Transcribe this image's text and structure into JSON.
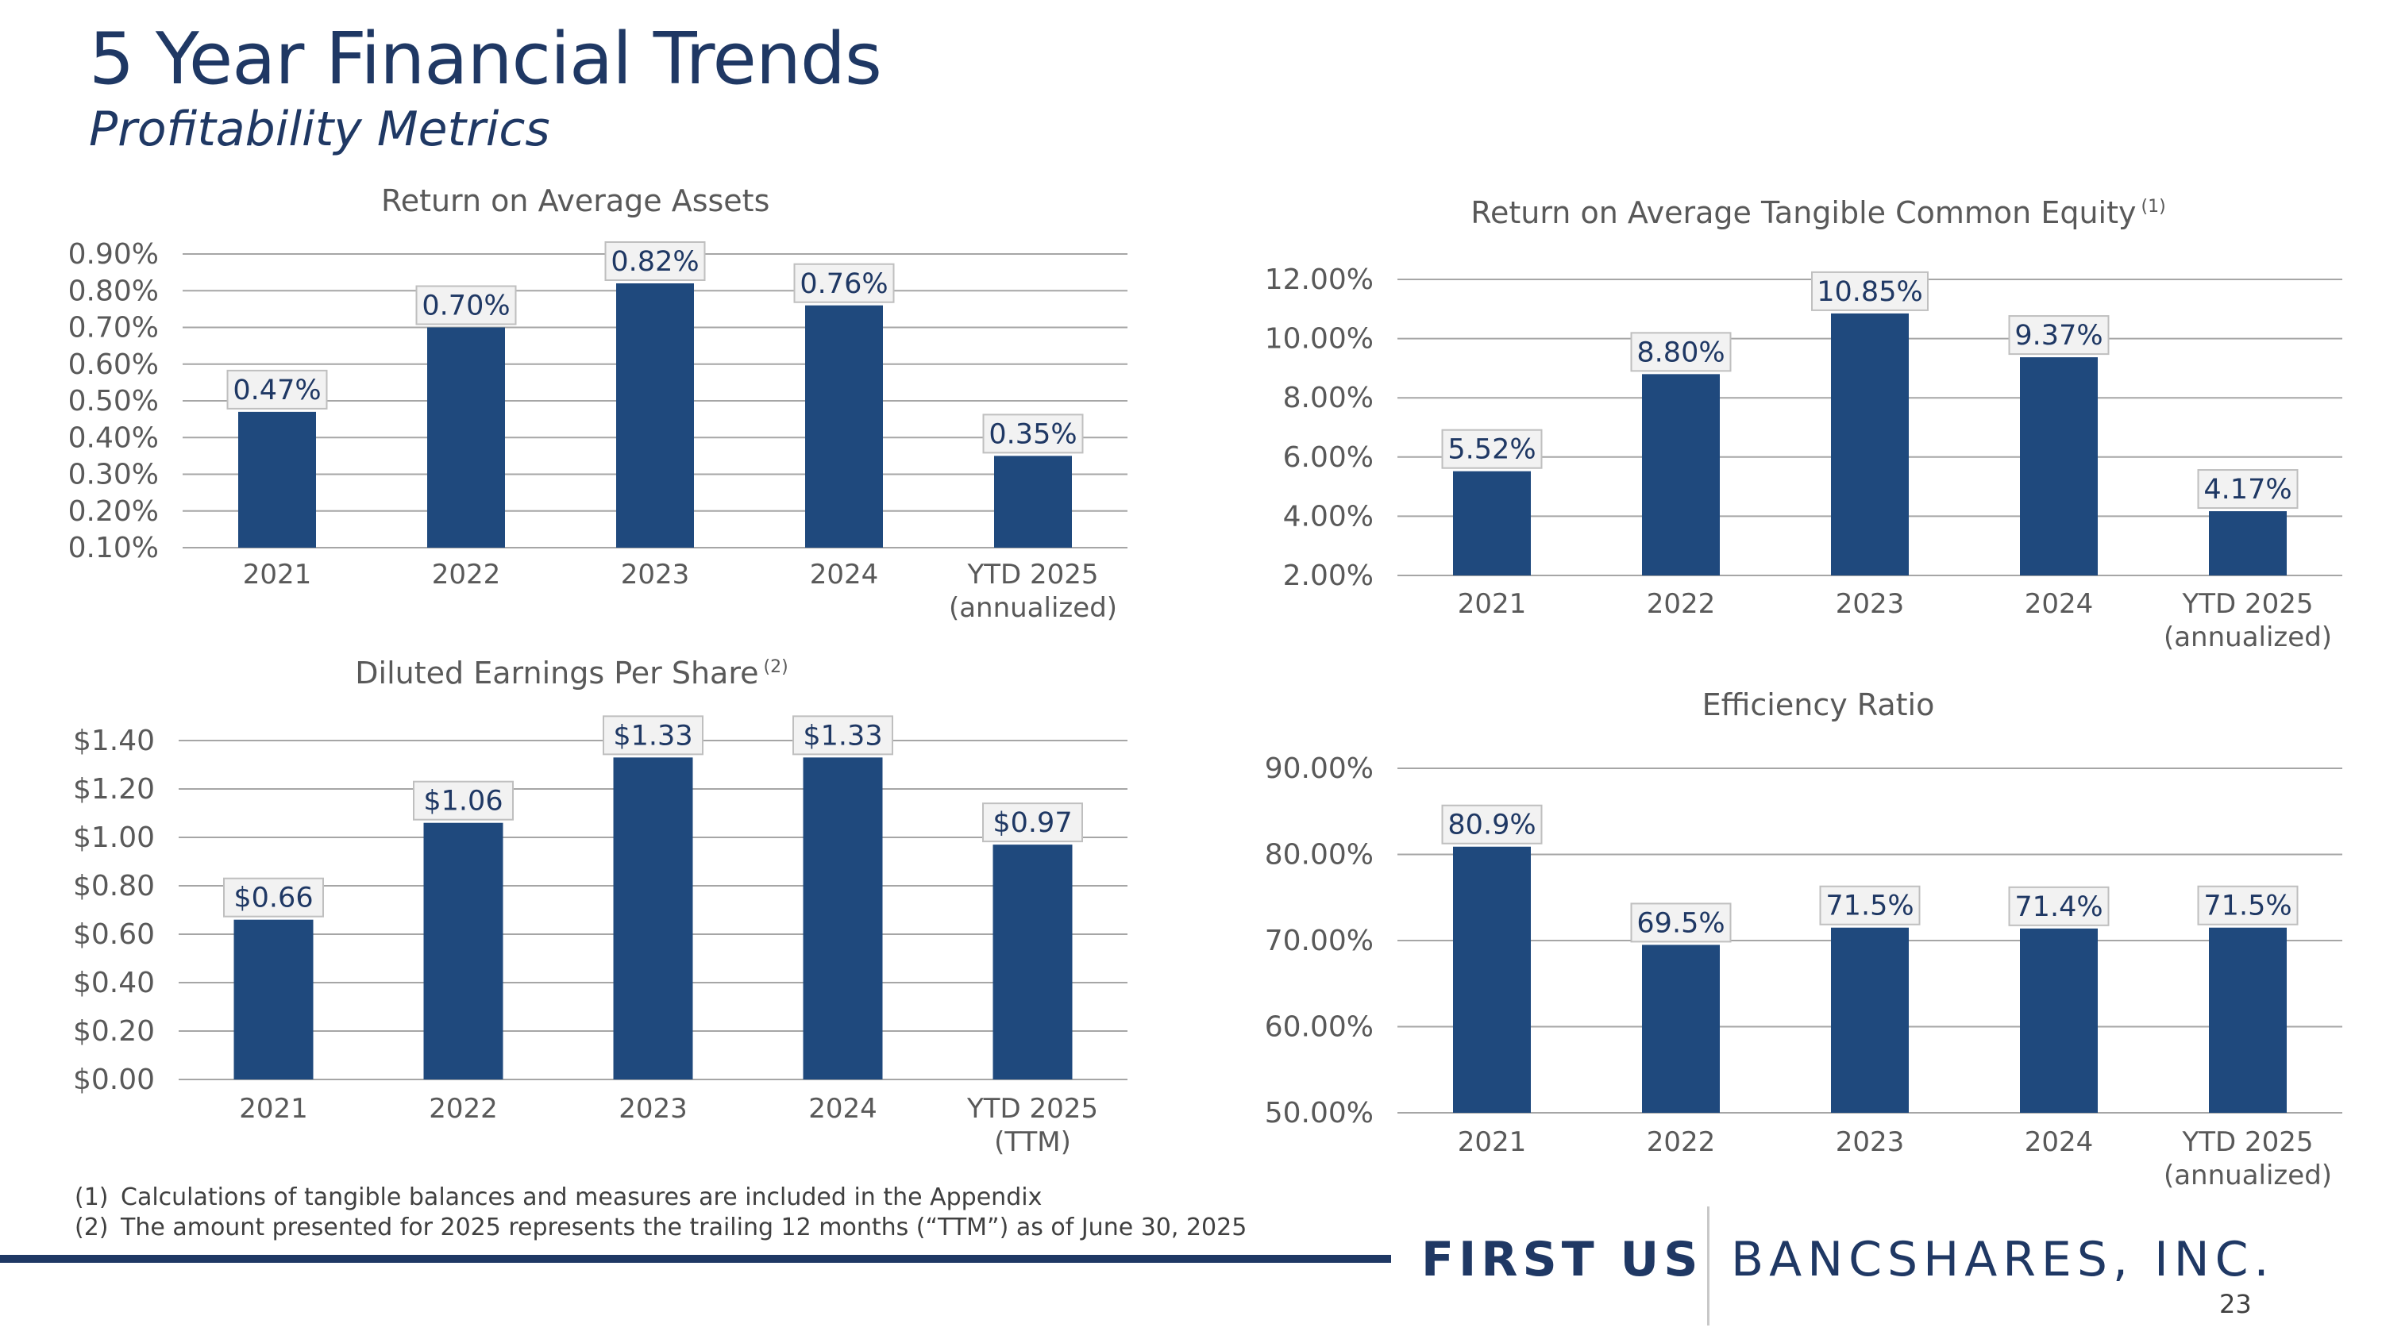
{
  "slide": {
    "title": "5 Year Financial Trends",
    "subtitle": "Profitability Metrics",
    "footnotes": [
      {
        "num": "(1)",
        "text": "Calculations of tangible balances and measures are included in the Appendix"
      },
      {
        "num": "(2)",
        "text": "The amount presented for 2025 represents the trailing 12 months (“TTM”) as of June 30, 2025"
      }
    ],
    "brand_left": "FIRST US",
    "brand_right": "BANCSHARES, INC.",
    "page_number": "23",
    "colors": {
      "bar": "#1f497d",
      "title": "#1f3864",
      "grid": "#a6a6a6",
      "label_box": "#f2f2f2"
    }
  },
  "chart_data": [
    {
      "type": "bar",
      "title": "Return on Average Assets",
      "footnote_ref": "",
      "categories": [
        "2021",
        "2022",
        "2023",
        "2024",
        "YTD 2025\n(annualized)"
      ],
      "values": [
        0.47,
        0.7,
        0.82,
        0.76,
        0.35
      ],
      "value_labels": [
        "0.47%",
        "0.70%",
        "0.82%",
        "0.76%",
        "0.35%"
      ],
      "yticks": [
        "0.90%",
        "0.80%",
        "0.70%",
        "0.60%",
        "0.50%",
        "0.40%",
        "0.30%",
        "0.20%",
        "0.10%"
      ],
      "ylim": [
        0.1,
        0.9
      ],
      "grid": true
    },
    {
      "type": "bar",
      "title": "Return on Average Tangible Common Equity",
      "footnote_ref": "(1)",
      "categories": [
        "2021",
        "2022",
        "2023",
        "2024",
        "YTD 2025\n(annualized)"
      ],
      "values": [
        5.52,
        8.8,
        10.85,
        9.37,
        4.17
      ],
      "value_labels": [
        "5.52%",
        "8.80%",
        "10.85%",
        "9.37%",
        "4.17%"
      ],
      "yticks": [
        "12.00%",
        "10.00%",
        "8.00%",
        "6.00%",
        "4.00%",
        "2.00%"
      ],
      "ylim": [
        2.0,
        12.0
      ],
      "grid": true
    },
    {
      "type": "bar",
      "title": "Diluted Earnings Per Share",
      "footnote_ref": "(2)",
      "categories": [
        "2021",
        "2022",
        "2023",
        "2024",
        "YTD 2025\n(TTM)"
      ],
      "values": [
        0.66,
        1.06,
        1.33,
        1.33,
        0.97
      ],
      "value_labels": [
        "$0.66",
        "$1.06",
        "$1.33",
        "$1.33",
        "$0.97"
      ],
      "yticks": [
        "$1.40",
        "$1.20",
        "$1.00",
        "$0.80",
        "$0.60",
        "$0.40",
        "$0.20",
        "$0.00"
      ],
      "ylim": [
        0.0,
        1.4
      ],
      "grid": true
    },
    {
      "type": "bar",
      "title": "Efficiency Ratio",
      "footnote_ref": "",
      "categories": [
        "2021",
        "2022",
        "2023",
        "2024",
        "YTD 2025\n(annualized)"
      ],
      "values": [
        80.9,
        69.5,
        71.5,
        71.4,
        71.5
      ],
      "value_labels": [
        "80.9%",
        "69.5%",
        "71.5%",
        "71.4%",
        "71.5%"
      ],
      "yticks": [
        "90.00%",
        "80.00%",
        "70.00%",
        "60.00%",
        "50.00%"
      ],
      "ylim": [
        50.0,
        90.0
      ],
      "grid": true
    }
  ]
}
